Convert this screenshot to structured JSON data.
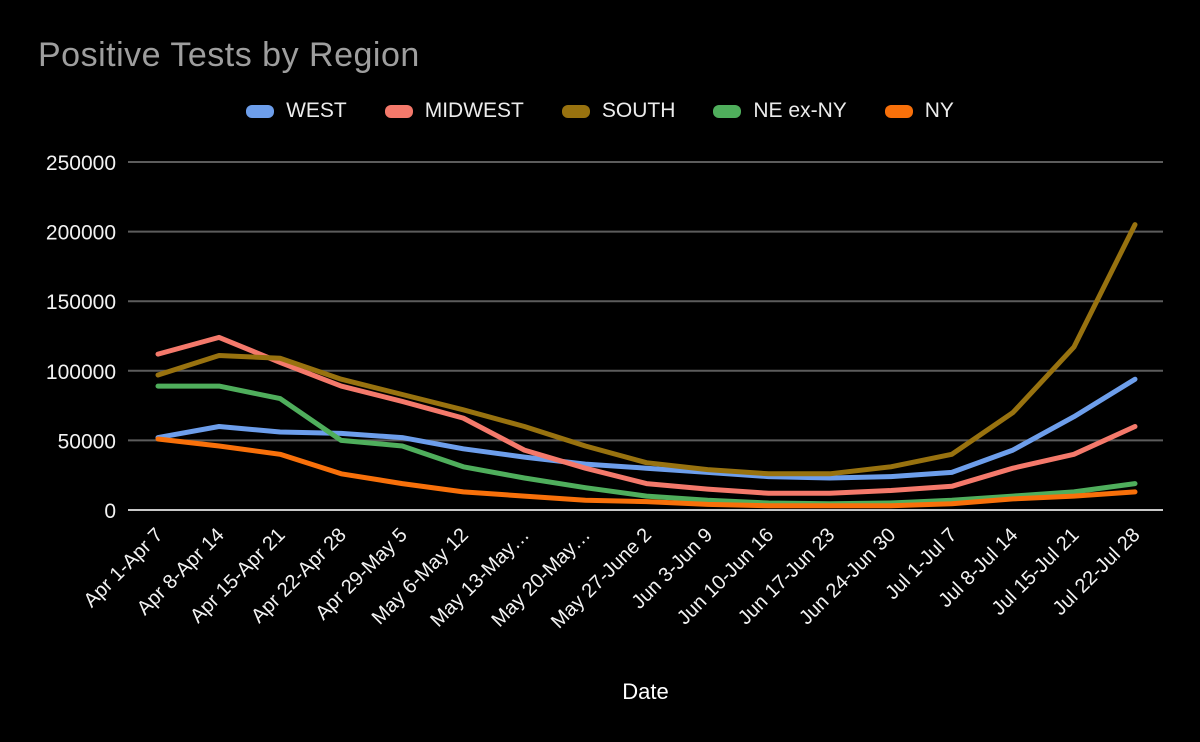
{
  "page": {
    "background_color": "#000000",
    "title_color": "#9E9E9E",
    "axis_text_color": "#F2F2F2",
    "gridline_color": "#5C5C5C",
    "baseline_color": "#C8C8C8"
  },
  "chart_data": {
    "type": "line",
    "title": "Positive Tests by Region",
    "xlabel": "Date",
    "ylabel": "",
    "ylim": [
      0,
      250000
    ],
    "yticks": [
      0,
      50000,
      100000,
      150000,
      200000,
      250000
    ],
    "grid": true,
    "legend_position": "top",
    "categories": [
      "Apr 1-Apr 7",
      "Apr 8-Apr 14",
      "Apr 15-Apr 21",
      "Apr 22-Apr 28",
      "Apr 29-May 5",
      "May 6-May 12",
      "May 13-May…",
      "May 20-May…",
      "May 27-June 2",
      "Jun 3-Jun 9",
      "Jun 10-Jun 16",
      "Jun 17-Jun 23",
      "Jun 24-Jun 30",
      "Jul 1-Jul 7",
      "Jul 8-Jul 14",
      "Jul 15-Jul 21",
      "Jul 22-Jul 28"
    ],
    "series": [
      {
        "name": "WEST",
        "color": "#6D9EEB",
        "values": [
          52000,
          60000,
          56000,
          55000,
          52000,
          44000,
          38000,
          33000,
          30000,
          27000,
          24000,
          23000,
          24000,
          27000,
          43000,
          67000,
          94000
        ]
      },
      {
        "name": "MIDWEST",
        "color": "#F4796B",
        "values": [
          112000,
          124000,
          106000,
          89000,
          78000,
          66000,
          43000,
          30000,
          19000,
          15000,
          12000,
          12000,
          14000,
          17000,
          30000,
          40000,
          60000
        ]
      },
      {
        "name": "SOUTH",
        "color": "#98720F",
        "values": [
          97000,
          111000,
          109000,
          94000,
          83000,
          72000,
          60000,
          46000,
          34000,
          29000,
          26000,
          26000,
          31000,
          40000,
          70000,
          117000,
          205000
        ]
      },
      {
        "name": "NE ex-NY",
        "color": "#4FAE5C",
        "values": [
          89000,
          89000,
          80000,
          50000,
          46000,
          31000,
          23000,
          16000,
          10000,
          7000,
          5000,
          4500,
          5000,
          7000,
          10000,
          13000,
          19000
        ]
      },
      {
        "name": "NY",
        "color": "#F8700A",
        "values": [
          51000,
          46000,
          40000,
          26000,
          19000,
          13000,
          10000,
          7000,
          6000,
          4000,
          3000,
          3000,
          3000,
          4500,
          8000,
          10000,
          13000
        ]
      }
    ]
  }
}
